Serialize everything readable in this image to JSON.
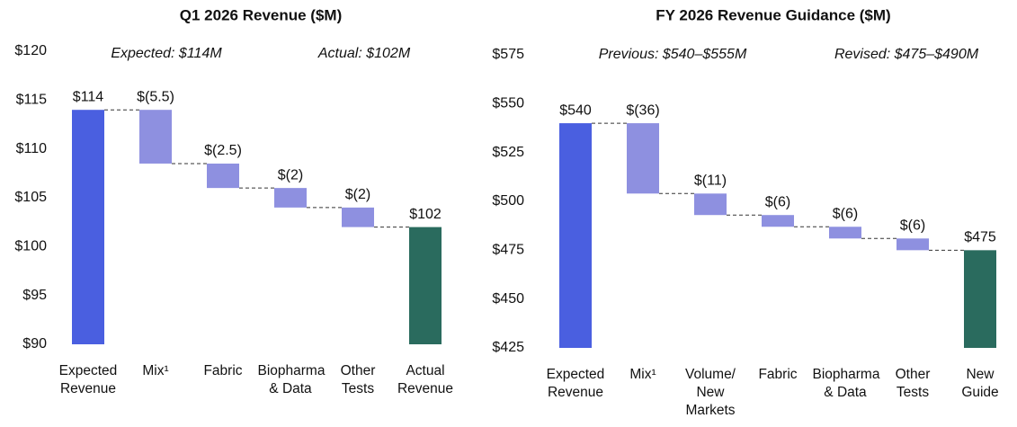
{
  "chart_data": [
    {
      "type": "waterfall",
      "title": "Q1 2026 Revenue ($M)",
      "annotations": [
        "Expected: $114M",
        "Actual: $102M"
      ],
      "categories": [
        "Expected Revenue",
        "Mix¹",
        "Fabric",
        "Biopharma & Data",
        "Other Tests",
        "Actual Revenue"
      ],
      "values": [
        114,
        -5.5,
        -2.5,
        -2,
        -2,
        102
      ],
      "value_labels": [
        "$114",
        "$(5.5)",
        "$(2.5)",
        "$(2)",
        "$(2)",
        "$102"
      ],
      "measure": [
        "absolute",
        "relative",
        "relative",
        "relative",
        "relative",
        "total"
      ],
      "colors": [
        "#4a5fe0",
        "#8e90e0",
        "#8e90e0",
        "#8e90e0",
        "#8e90e0",
        "#2a6b5e"
      ],
      "ylim": [
        90,
        120
      ],
      "yticks": [
        {
          "value": 90,
          "label": "$90"
        },
        {
          "value": 95,
          "label": "$95"
        },
        {
          "value": 100,
          "label": "$100"
        },
        {
          "value": 105,
          "label": "$105"
        },
        {
          "value": 110,
          "label": "$110"
        },
        {
          "value": 115,
          "label": "$115"
        },
        {
          "value": 120,
          "label": "$120"
        }
      ]
    },
    {
      "type": "waterfall",
      "title": "FY 2026 Revenue Guidance ($M)",
      "annotations": [
        "Previous: $540–$555M",
        "Revised: $475–$490M"
      ],
      "categories": [
        "Expected Revenue",
        "Mix¹",
        "Volume/ New Markets",
        "Fabric",
        "Biopharma & Data",
        "Other Tests",
        "New Guide"
      ],
      "values": [
        540,
        -36,
        -11,
        -6,
        -6,
        -6,
        475
      ],
      "value_labels": [
        "$540",
        "$(36)",
        "$(11)",
        "$(6)",
        "$(6)",
        "$(6)",
        "$475"
      ],
      "measure": [
        "absolute",
        "relative",
        "relative",
        "relative",
        "relative",
        "relative",
        "total"
      ],
      "colors": [
        "#4a5fe0",
        "#8e90e0",
        "#8e90e0",
        "#8e90e0",
        "#8e90e0",
        "#8e90e0",
        "#2a6b5e"
      ],
      "ylim": [
        425,
        575
      ],
      "yticks": [
        {
          "value": 425,
          "label": "$425"
        },
        {
          "value": 450,
          "label": "$450"
        },
        {
          "value": 475,
          "label": "$475"
        },
        {
          "value": 500,
          "label": "$500"
        },
        {
          "value": 525,
          "label": "$525"
        },
        {
          "value": 550,
          "label": "$550"
        },
        {
          "value": 575,
          "label": "$575"
        }
      ]
    }
  ]
}
